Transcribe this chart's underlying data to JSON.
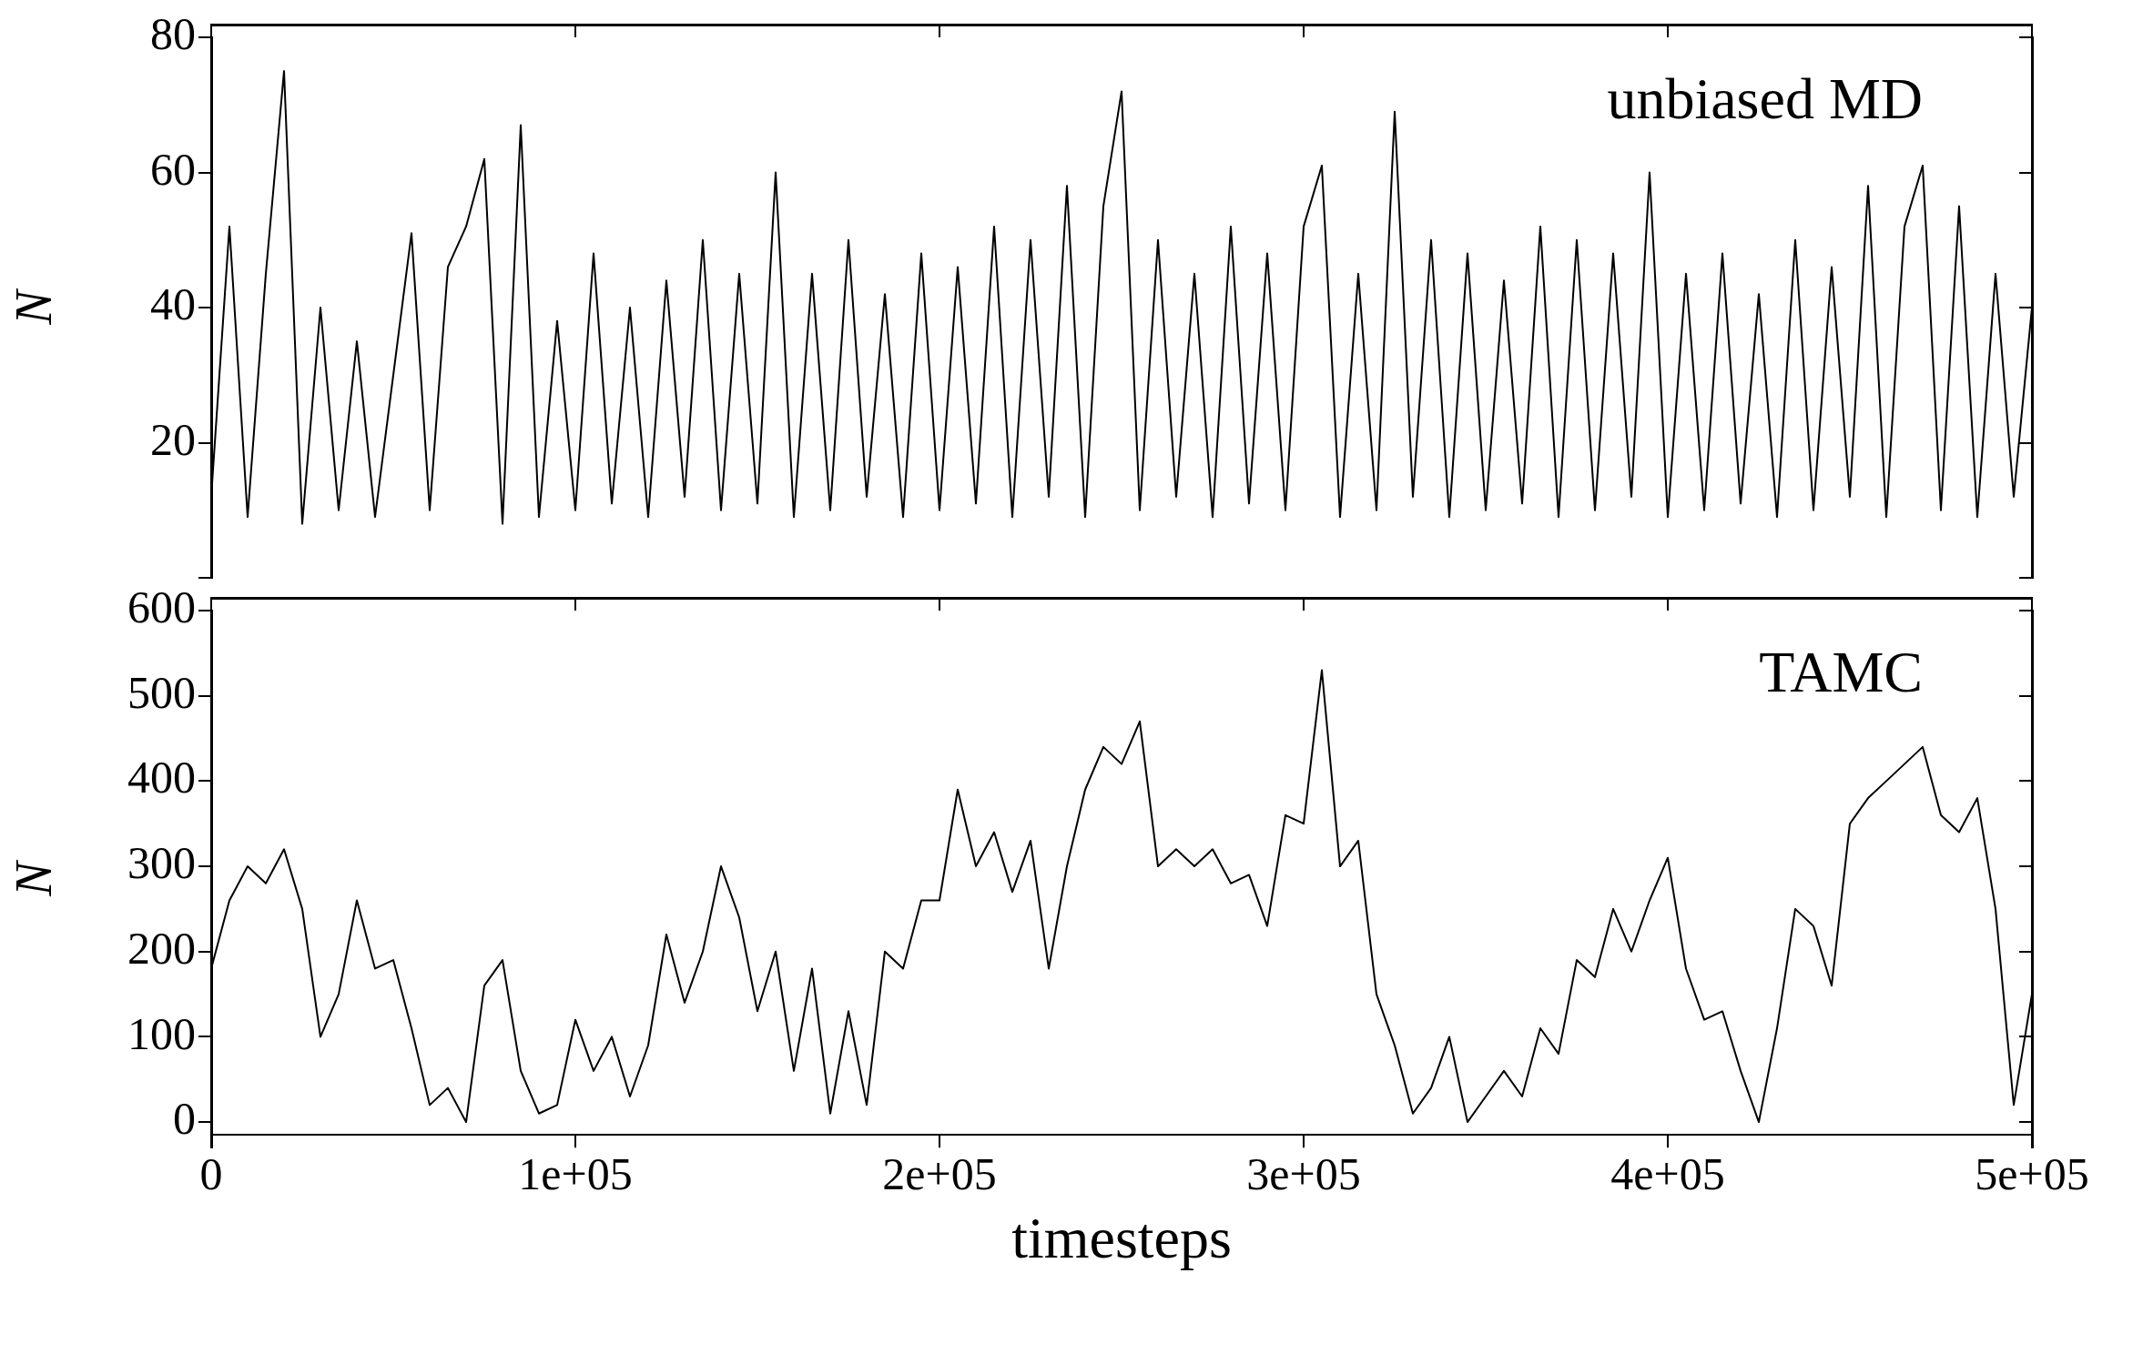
{
  "chart_data": [
    {
      "type": "line",
      "annotations": [
        "unbiased MD"
      ],
      "ylabel": "N",
      "tick_labels": "y",
      "grid": false,
      "legend": false,
      "marker": "none",
      "line_style": "solid",
      "xlim": [
        0,
        500000
      ],
      "xticks": [
        {
          "value": 0,
          "label": null
        },
        {
          "value": 100000,
          "label": null
        },
        {
          "value": 200000,
          "label": null
        },
        {
          "value": 300000,
          "label": null
        },
        {
          "value": 400000,
          "label": null
        },
        {
          "value": 500000,
          "label": null
        }
      ],
      "ylim": [
        0,
        80
      ],
      "yticks": [
        {
          "value": 0,
          "label": null
        },
        20,
        40,
        60,
        80
      ],
      "x": [
        0,
        5000,
        10000,
        15000,
        20000,
        25000,
        30000,
        35000,
        40000,
        45000,
        50000,
        55000,
        60000,
        65000,
        70000,
        75000,
        80000,
        85000,
        90000,
        95000,
        100000,
        105000,
        110000,
        115000,
        120000,
        125000,
        130000,
        135000,
        140000,
        145000,
        150000,
        155000,
        160000,
        165000,
        170000,
        175000,
        180000,
        185000,
        190000,
        195000,
        200000,
        205000,
        210000,
        215000,
        220000,
        225000,
        230000,
        235000,
        240000,
        245000,
        250000,
        255000,
        260000,
        265000,
        270000,
        275000,
        280000,
        285000,
        290000,
        295000,
        300000,
        305000,
        310000,
        315000,
        320000,
        325000,
        330000,
        335000,
        340000,
        345000,
        350000,
        355000,
        360000,
        365000,
        370000,
        375000,
        380000,
        385000,
        390000,
        395000,
        400000,
        405000,
        410000,
        415000,
        420000,
        425000,
        430000,
        435000,
        440000,
        445000,
        450000,
        455000,
        460000,
        465000,
        470000,
        475000,
        480000,
        485000,
        490000,
        495000,
        500000
      ],
      "series": [
        {
          "color": "#000000",
          "values": [
            12,
            52,
            9,
            45,
            75,
            8,
            40,
            10,
            35,
            9,
            30,
            51,
            10,
            46,
            52,
            62,
            8,
            67,
            9,
            38,
            10,
            48,
            11,
            40,
            9,
            44,
            12,
            50,
            10,
            45,
            11,
            60,
            9,
            45,
            10,
            50,
            12,
            42,
            9,
            48,
            10,
            46,
            11,
            52,
            9,
            50,
            12,
            58,
            9,
            55,
            72,
            10,
            50,
            12,
            45,
            9,
            52,
            11,
            48,
            10,
            52,
            61,
            9,
            45,
            10,
            69,
            12,
            50,
            9,
            48,
            10,
            44,
            11,
            52,
            9,
            50,
            10,
            48,
            12,
            60,
            9,
            45,
            10,
            48,
            11,
            42,
            9,
            50,
            10,
            46,
            12,
            58,
            9,
            52,
            61,
            10,
            55,
            9,
            45,
            12,
            40
          ]
        }
      ]
    },
    {
      "type": "line",
      "annotations": [
        "TAMC"
      ],
      "ylabel": "N",
      "xlabel": "timesteps",
      "grid": false,
      "legend": false,
      "marker": "none",
      "line_style": "solid",
      "xlim": [
        0,
        500000
      ],
      "xticks": [
        0,
        {
          "value": 100000,
          "label": "1e+05"
        },
        {
          "value": 200000,
          "label": "2e+05"
        },
        {
          "value": 300000,
          "label": "3e+05"
        },
        {
          "value": 400000,
          "label": "4e+05"
        },
        {
          "value": 500000,
          "label": "5e+05"
        }
      ],
      "ylim": [
        -30,
        600
      ],
      "yticks": [
        0,
        100,
        200,
        300,
        400,
        500,
        600
      ],
      "x": [
        0,
        5000,
        10000,
        15000,
        20000,
        25000,
        30000,
        35000,
        40000,
        45000,
        50000,
        55000,
        60000,
        65000,
        70000,
        75000,
        80000,
        85000,
        90000,
        95000,
        100000,
        105000,
        110000,
        115000,
        120000,
        125000,
        130000,
        135000,
        140000,
        145000,
        150000,
        155000,
        160000,
        165000,
        170000,
        175000,
        180000,
        185000,
        190000,
        195000,
        200000,
        205000,
        210000,
        215000,
        220000,
        225000,
        230000,
        235000,
        240000,
        245000,
        250000,
        255000,
        260000,
        265000,
        270000,
        275000,
        280000,
        285000,
        290000,
        295000,
        300000,
        305000,
        310000,
        315000,
        320000,
        325000,
        330000,
        335000,
        340000,
        345000,
        350000,
        355000,
        360000,
        365000,
        370000,
        375000,
        380000,
        385000,
        390000,
        395000,
        400000,
        405000,
        410000,
        415000,
        420000,
        425000,
        430000,
        435000,
        440000,
        445000,
        450000,
        455000,
        460000,
        465000,
        470000,
        475000,
        480000,
        485000,
        490000,
        495000,
        500000
      ],
      "series": [
        {
          "color": "#000000",
          "values": [
            180,
            260,
            300,
            280,
            320,
            250,
            100,
            150,
            260,
            180,
            190,
            110,
            20,
            40,
            0,
            160,
            190,
            60,
            10,
            20,
            120,
            60,
            100,
            30,
            90,
            220,
            140,
            200,
            300,
            240,
            130,
            200,
            60,
            180,
            10,
            130,
            20,
            200,
            180,
            260,
            260,
            390,
            300,
            340,
            270,
            330,
            180,
            300,
            390,
            440,
            420,
            470,
            300,
            320,
            300,
            320,
            280,
            290,
            230,
            360,
            350,
            530,
            300,
            330,
            150,
            90,
            10,
            40,
            100,
            0,
            30,
            60,
            30,
            110,
            80,
            190,
            170,
            250,
            200,
            260,
            310,
            180,
            120,
            130,
            60,
            0,
            110,
            250,
            230,
            160,
            350,
            380,
            400,
            420,
            440,
            360,
            340,
            380,
            250,
            20,
            150
          ]
        }
      ]
    }
  ]
}
